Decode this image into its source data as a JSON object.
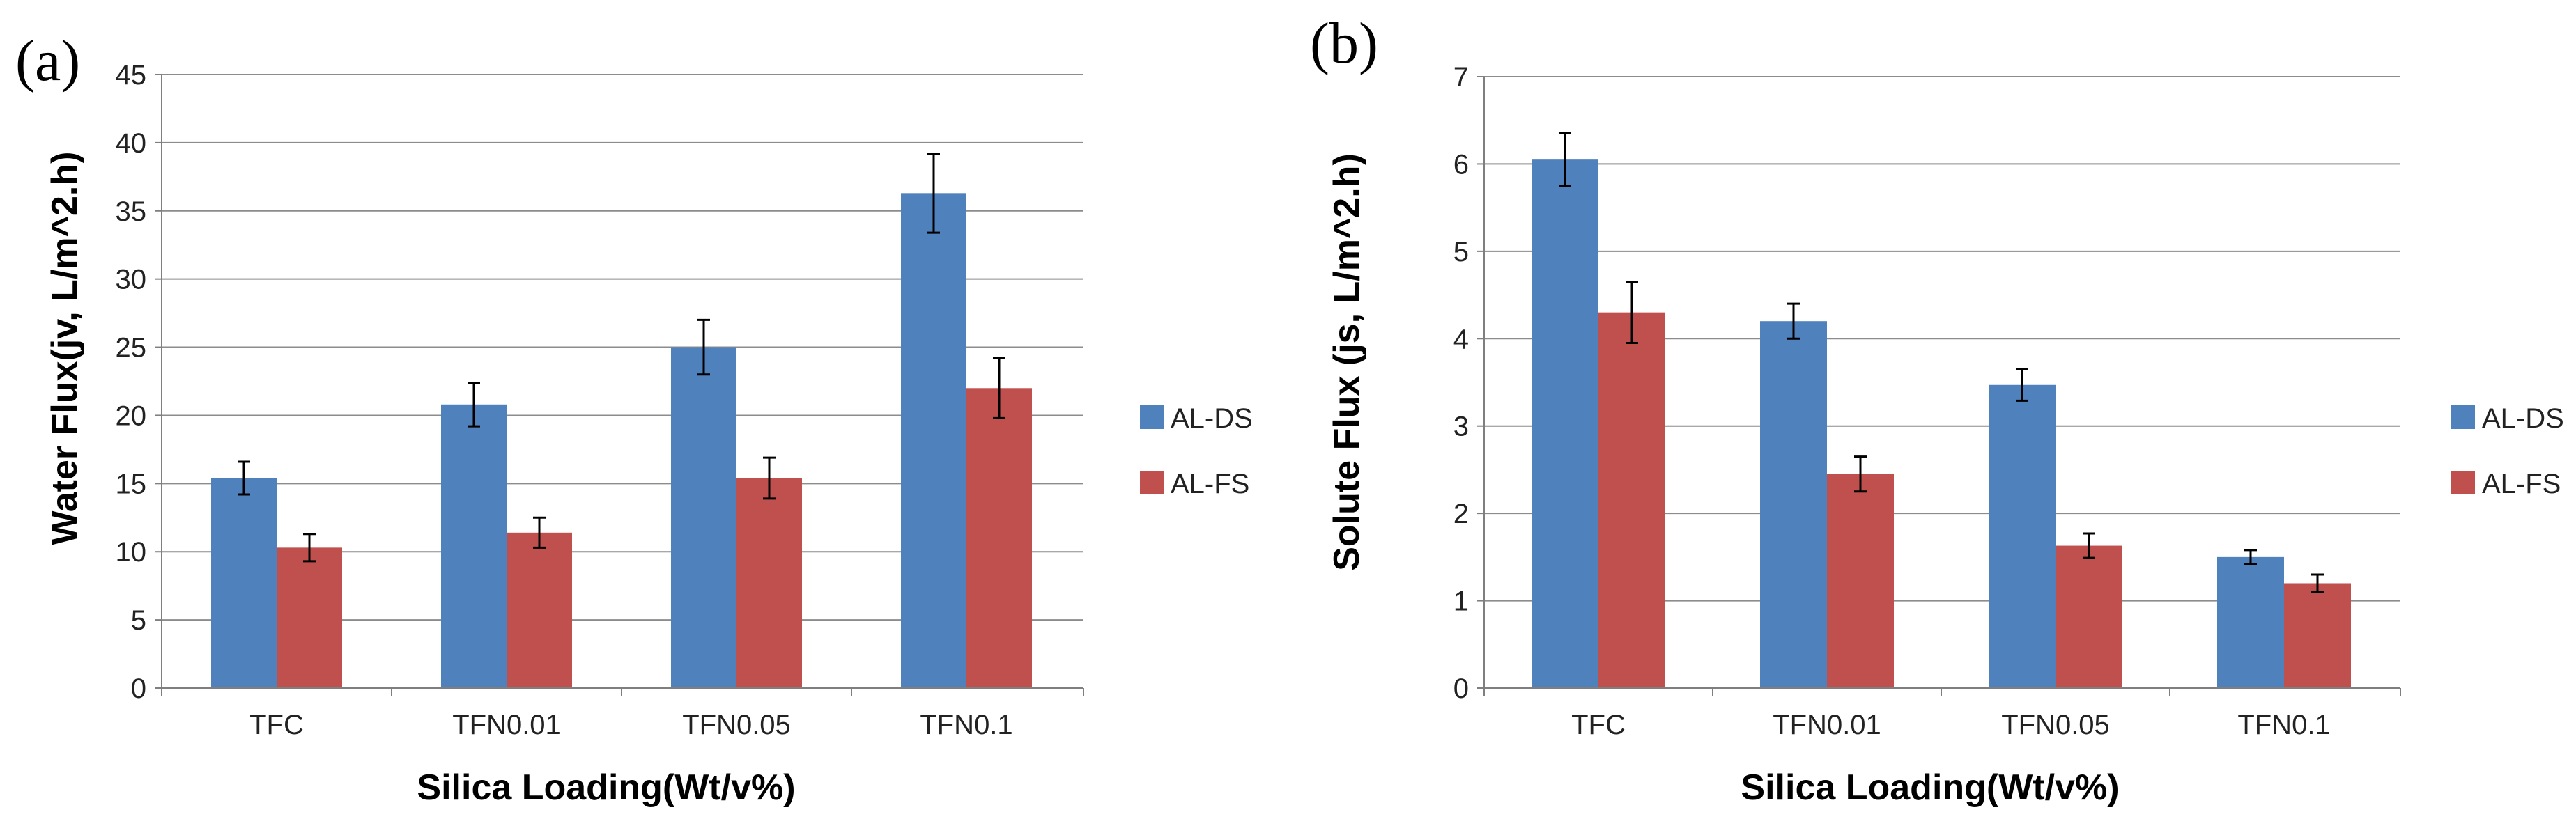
{
  "chart_data": [
    {
      "type": "bar",
      "panel_label": "(a)",
      "title": "",
      "xlabel": "Silica Loading(Wt/v%)",
      "ylabel": "Water Flux(jv, L/m^2.h)",
      "ylim": [
        0,
        45
      ],
      "yticks": [
        0,
        5,
        10,
        15,
        20,
        25,
        30,
        35,
        40,
        45
      ],
      "ytick_labels": [
        "0",
        "5",
        "10",
        "15",
        "20",
        "25",
        "30",
        "35",
        "40",
        "45"
      ],
      "grid": true,
      "legend_position": "right",
      "categories": [
        "TFC",
        "TFN0.01",
        "TFN0.05",
        "TFN0.1"
      ],
      "series": [
        {
          "name": "AL-DS",
          "color": "#4f81bd",
          "values": [
            15.4,
            20.8,
            25.0,
            36.3
          ],
          "errors": [
            1.2,
            1.6,
            2.0,
            2.9
          ]
        },
        {
          "name": "AL-FS",
          "color": "#c0504d",
          "values": [
            10.3,
            11.4,
            15.4,
            22.0
          ],
          "errors": [
            1.0,
            1.1,
            1.5,
            2.2
          ]
        }
      ]
    },
    {
      "type": "bar",
      "panel_label": "(b)",
      "title": "",
      "xlabel": "Silica Loading(Wt/v%)",
      "ylabel": "Solute Flux (js, L/m^2.h)",
      "ylim": [
        0,
        7
      ],
      "yticks": [
        0,
        1,
        2,
        3,
        4,
        5,
        6,
        7
      ],
      "ytick_labels": [
        "0",
        "1",
        "2",
        "3",
        "4",
        "5",
        "6",
        "7"
      ],
      "grid": true,
      "legend_position": "right",
      "categories": [
        "TFC",
        "TFN0.01",
        "TFN0.05",
        "TFN0.1"
      ],
      "series": [
        {
          "name": "AL-DS",
          "color": "#4f81bd",
          "values": [
            6.05,
            4.2,
            3.47,
            1.5
          ],
          "errors": [
            0.3,
            0.2,
            0.18,
            0.08
          ]
        },
        {
          "name": "AL-FS",
          "color": "#c0504d",
          "values": [
            4.3,
            2.45,
            1.63,
            1.2
          ],
          "errors": [
            0.35,
            0.2,
            0.14,
            0.1
          ]
        }
      ]
    }
  ]
}
